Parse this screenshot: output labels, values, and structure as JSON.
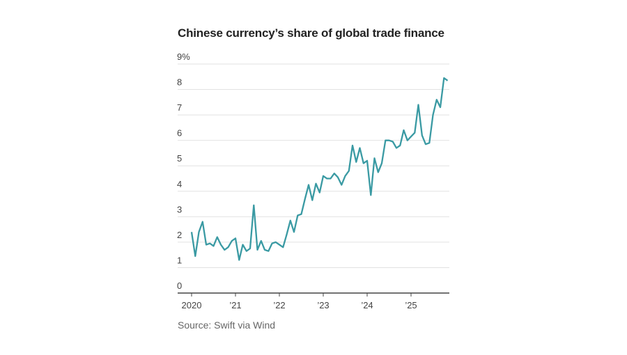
{
  "chart_data": {
    "type": "line",
    "title": "Chinese currency’s share of global trade finance",
    "source": "Source: Swift via Wind",
    "y_ticks": [
      "0",
      "1",
      "2",
      "3",
      "4",
      "5",
      "6",
      "7",
      "8",
      "9%"
    ],
    "y_range": [
      0,
      9
    ],
    "x_ticks": [
      {
        "date": "2020-01",
        "label": "2020"
      },
      {
        "date": "2021-01",
        "label": "’21"
      },
      {
        "date": "2022-01",
        "label": "’22"
      },
      {
        "date": "2023-01",
        "label": "’23"
      },
      {
        "date": "2024-01",
        "label": "’24"
      },
      {
        "date": "2025-01",
        "label": "’25"
      }
    ],
    "grid": true,
    "line_color": "#3a9aa3",
    "series": [
      {
        "x": [
          "2020-01",
          "2020-02",
          "2020-03",
          "2020-04",
          "2020-05",
          "2020-06",
          "2020-07",
          "2020-08",
          "2020-09",
          "2020-10",
          "2020-11",
          "2020-12",
          "2021-01",
          "2021-02",
          "2021-03",
          "2021-04",
          "2021-05",
          "2021-06",
          "2021-07",
          "2021-08",
          "2021-09",
          "2021-10",
          "2021-11",
          "2021-12",
          "2022-01",
          "2022-02",
          "2022-03",
          "2022-04",
          "2022-05",
          "2022-06",
          "2022-07",
          "2022-08",
          "2022-09",
          "2022-10",
          "2022-11",
          "2022-12",
          "2023-01",
          "2023-02",
          "2023-03",
          "2023-04",
          "2023-05",
          "2023-06",
          "2023-07",
          "2023-08",
          "2023-09",
          "2023-10",
          "2023-11",
          "2023-12",
          "2024-01",
          "2024-02",
          "2024-03",
          "2024-04",
          "2024-05",
          "2024-06",
          "2024-07",
          "2024-08",
          "2024-09",
          "2024-10",
          "2024-11",
          "2024-12",
          "2025-01",
          "2025-02",
          "2025-03",
          "2025-04",
          "2025-05",
          "2025-06",
          "2025-07",
          "2025-08",
          "2025-09",
          "2025-10",
          "2025-11"
        ],
        "values": [
          2.4,
          1.45,
          2.4,
          2.8,
          1.9,
          1.95,
          1.85,
          2.2,
          1.9,
          1.7,
          1.8,
          2.05,
          2.15,
          1.3,
          1.9,
          1.65,
          1.75,
          3.45,
          1.7,
          2.05,
          1.7,
          1.65,
          1.95,
          2.0,
          1.9,
          1.8,
          2.3,
          2.85,
          2.4,
          3.05,
          3.1,
          3.7,
          4.25,
          3.65,
          4.3,
          3.95,
          4.6,
          4.5,
          4.5,
          4.7,
          4.55,
          4.25,
          4.6,
          4.8,
          5.8,
          5.15,
          5.7,
          5.1,
          5.2,
          3.85,
          5.3,
          4.75,
          5.1,
          6.0,
          6.0,
          5.95,
          5.7,
          5.8,
          6.4,
          6.0,
          6.15,
          6.3,
          7.4,
          6.2,
          5.85,
          5.9,
          7.0,
          7.6,
          7.3,
          8.45,
          8.35
        ]
      }
    ]
  }
}
